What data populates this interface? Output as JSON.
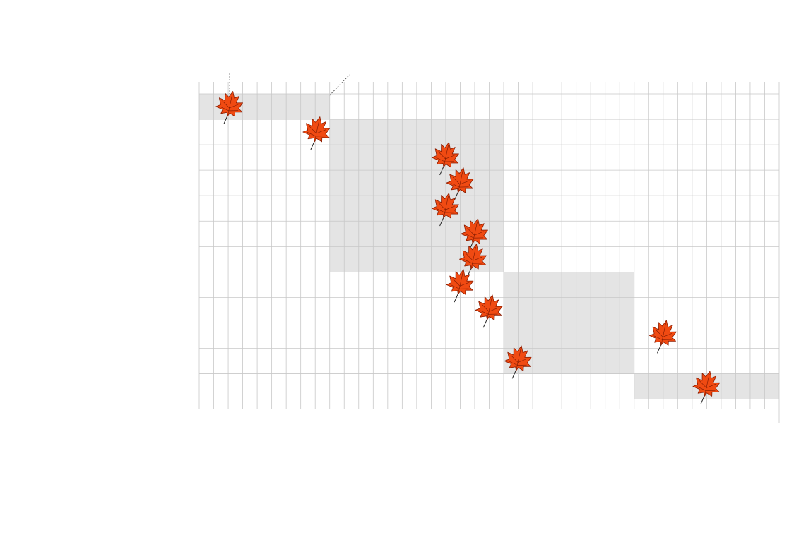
{
  "colors": {
    "leaf_fill": "#f04a12",
    "leaf_stroke": "#8a1c00",
    "leaf_vein": "#7a1800",
    "band_fill": "#e4e4e4",
    "grid_stroke": "#c8c8c8",
    "background": "#ffffff"
  },
  "icon": "maple-leaf-icon",
  "chart_data": {
    "type": "scatter",
    "title": "",
    "xlabel": "",
    "ylabel": "",
    "grid": true,
    "legend": "none",
    "x_range": [
      0,
      40
    ],
    "row_count": 12,
    "bands": [
      {
        "x_start": 0,
        "x_end": 9,
        "row_start": 0,
        "row_end": 0
      },
      {
        "x_start": 9,
        "x_end": 21,
        "row_start": 1,
        "row_end": 6
      },
      {
        "x_start": 21,
        "x_end": 30,
        "row_start": 7,
        "row_end": 10
      },
      {
        "x_start": 30,
        "x_end": 40,
        "row_start": 11,
        "row_end": 11
      }
    ],
    "points": [
      {
        "x": 2.1,
        "row": 0
      },
      {
        "x": 8.1,
        "row": 1
      },
      {
        "x": 17.0,
        "row": 2
      },
      {
        "x": 18.0,
        "row": 3
      },
      {
        "x": 17.0,
        "row": 4
      },
      {
        "x": 19.0,
        "row": 5
      },
      {
        "x": 18.9,
        "row": 6
      },
      {
        "x": 18.0,
        "row": 7
      },
      {
        "x": 20.0,
        "row": 8
      },
      {
        "x": 32.0,
        "row": 9
      },
      {
        "x": 22.0,
        "row": 10
      },
      {
        "x": 35.0,
        "row": 11
      }
    ]
  }
}
